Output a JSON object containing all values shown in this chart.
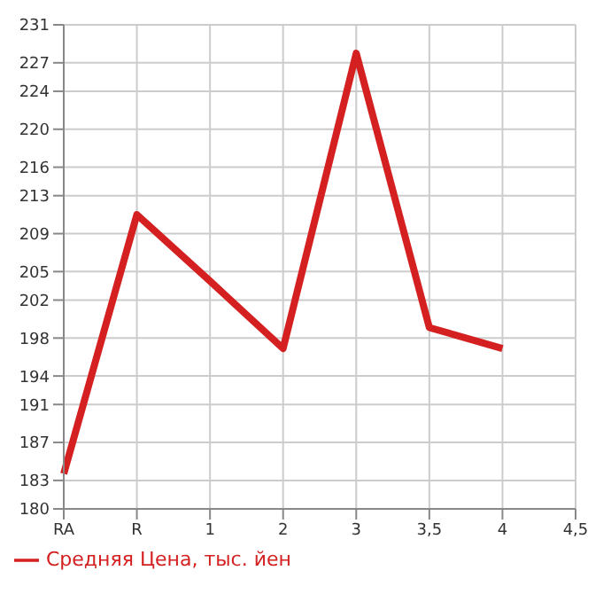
{
  "chart_data": {
    "type": "line",
    "categories": [
      "RA",
      "R",
      "1",
      "2",
      "3",
      "3,5",
      "4",
      "4,5"
    ],
    "series": [
      {
        "name": "Средняя Цена, тыс. йен",
        "color": "#d42020",
        "values": [
          183.7,
          211,
          204,
          196.9,
          228,
          199.1,
          196.9,
          null
        ]
      }
    ],
    "ylim": [
      180,
      231
    ],
    "yticks": [
      180,
      183,
      187,
      191,
      194,
      198,
      202,
      205,
      209,
      213,
      216,
      220,
      224,
      227,
      231
    ],
    "grid": true,
    "legend": "bottom left",
    "marker": "none",
    "line_style": "solid"
  }
}
